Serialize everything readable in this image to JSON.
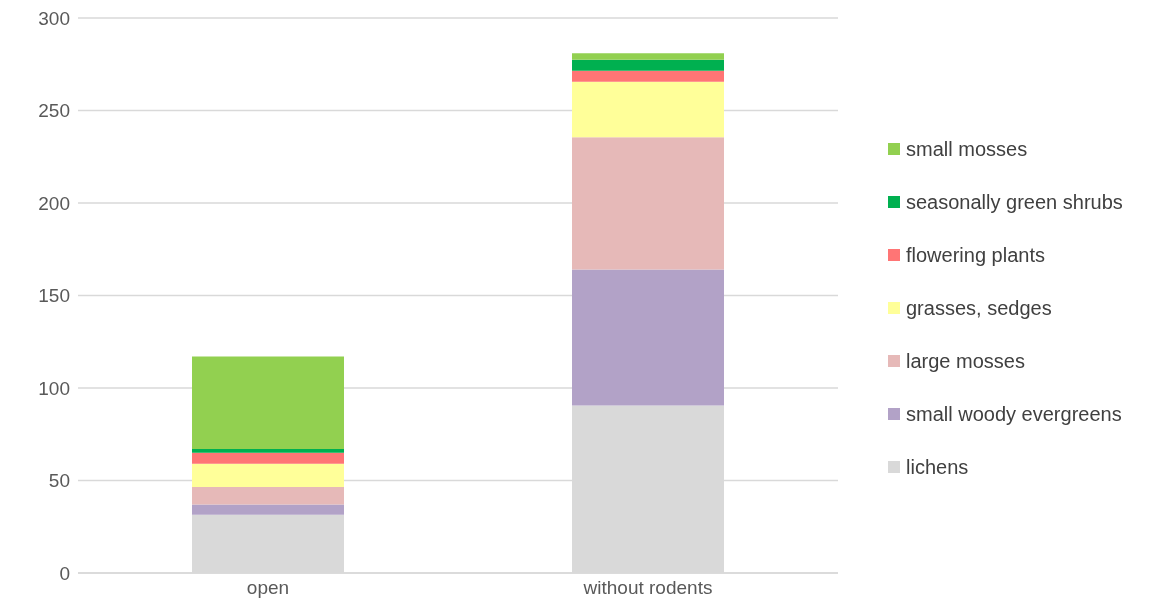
{
  "chart_data": {
    "type": "bar",
    "stacked": true,
    "categories": [
      "open",
      "without rodents"
    ],
    "series": [
      {
        "name": "lichens",
        "color": "#d9d9d9",
        "values": [
          31.5,
          90.5
        ]
      },
      {
        "name": "small woody evergreens",
        "color": "#b2a2c7",
        "values": [
          5.5,
          73.5
        ]
      },
      {
        "name": "large mosses",
        "color": "#e6b9b8",
        "values": [
          9.5,
          71.5
        ]
      },
      {
        "name": "grasses, sedges",
        "color": "#ffff99",
        "values": [
          12.5,
          30
        ]
      },
      {
        "name": "flowering plants",
        "color": "#ff7575",
        "values": [
          6,
          6
        ]
      },
      {
        "name": "seasonally green shrubs",
        "color": "#00b050",
        "values": [
          2,
          6
        ]
      },
      {
        "name": "small mosses",
        "color": "#92d050",
        "values": [
          50,
          3.5
        ]
      }
    ],
    "ylim": [
      0,
      300
    ],
    "yticks": [
      0,
      50,
      100,
      150,
      200,
      250,
      300
    ],
    "grid": "y",
    "legend": "right"
  }
}
